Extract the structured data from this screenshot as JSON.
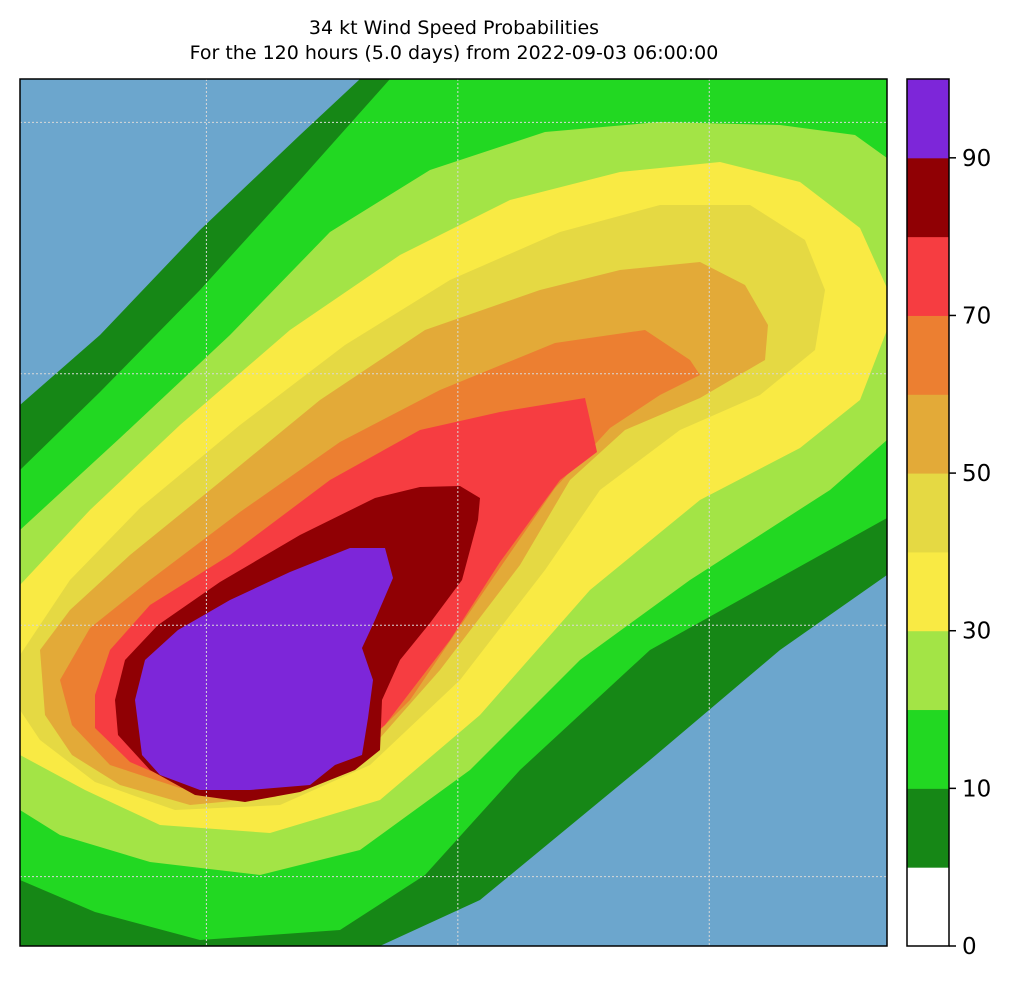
{
  "chart_data": {
    "type": "contourf",
    "title": "34 kt Wind Speed Probabilities",
    "subtitle": "For the 120 hours (5.0 days) from 2022-09-03 06:00:00",
    "xlabel": "",
    "ylabel": "",
    "grid": true,
    "background_color": "#6ca6cd",
    "colorbar": {
      "levels": [
        0,
        5,
        10,
        20,
        30,
        40,
        50,
        60,
        70,
        80,
        90,
        100
      ],
      "tick_labels": [
        "0",
        "10",
        "30",
        "50",
        "70",
        "90"
      ],
      "tick_values": [
        0,
        10,
        30,
        50,
        70,
        90
      ],
      "colors": [
        "#ffffff",
        "#168716",
        "#22d822",
        "#a3e446",
        "#f9ea44",
        "#e5d943",
        "#e3aa38",
        "#ec7f31",
        "#f63d41",
        "#900004",
        "#7d26d9"
      ]
    },
    "contours": [
      {
        "level": 5,
        "color": "#168716"
      },
      {
        "level": 10,
        "color": "#22d822"
      },
      {
        "level": 20,
        "color": "#a3e446"
      },
      {
        "level": 30,
        "color": "#f9ea44"
      },
      {
        "level": 40,
        "color": "#e5d943"
      },
      {
        "level": 50,
        "color": "#e3aa38"
      },
      {
        "level": 60,
        "color": "#ec7f31"
      },
      {
        "level": 70,
        "color": "#f63d41"
      },
      {
        "level": 80,
        "color": "#900004"
      },
      {
        "level": 90,
        "color": "#7d26d9"
      }
    ]
  }
}
